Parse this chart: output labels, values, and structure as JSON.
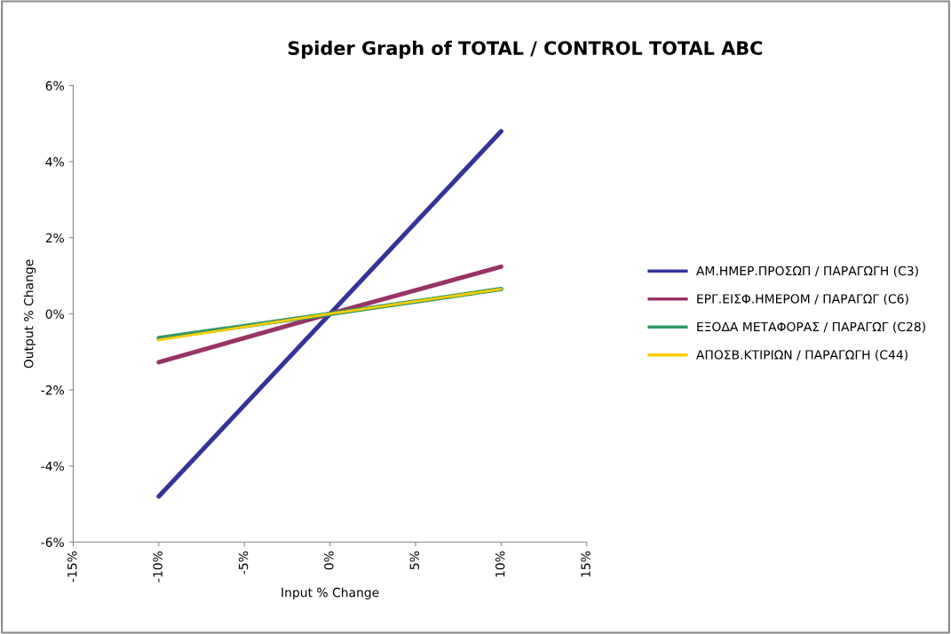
{
  "chart_data": {
    "type": "line",
    "title": "Spider Graph of TOTAL / CONTROL TOTAL ABC",
    "xlabel": "Input % Change",
    "ylabel": "Output % Change",
    "x": [
      -10,
      0,
      10
    ],
    "series": [
      {
        "name": "ΑΜ.ΗΜΕΡ.ΠΡΟΣΩΠ / ΠΑΡΑΓΩΓΗ (C3)",
        "color": "#333399",
        "values": [
          -4.8,
          0,
          4.8
        ]
      },
      {
        "name": "ΕΡΓ.ΕΙΣΦ.ΗΜΕΡΟΜ / ΠΑΡΑΓΩΓ (C6)",
        "color": "#993366",
        "values": [
          -1.27,
          0,
          1.24
        ]
      },
      {
        "name": "ΕΞΟΔΑ ΜΕΤΑΦΟΡΑΣ / ΠΑΡΑΓΩΓ (C28)",
        "color": "#339966",
        "values": [
          -0.64,
          0,
          0.65
        ]
      },
      {
        "name": "ΑΠΟΣΒ.ΚΤΙΡΙΩΝ / ΠΑΡΑΓΩΓΗ (C44)",
        "color": "#ffcc00",
        "values": [
          -0.69,
          0,
          0.65
        ]
      }
    ],
    "xlim": [
      -15,
      15
    ],
    "xticks": [
      {
        "value": -15,
        "label": "-15%"
      },
      {
        "value": -10,
        "label": "-10%"
      },
      {
        "value": -5,
        "label": "-5%"
      },
      {
        "value": 0,
        "label": "0%"
      },
      {
        "value": 5,
        "label": "5%"
      },
      {
        "value": 10,
        "label": "10%"
      },
      {
        "value": 15,
        "label": "15%"
      }
    ],
    "ylim": [
      -6,
      6
    ],
    "yticks": [
      {
        "value": -6,
        "label": "-6%"
      },
      {
        "value": -4,
        "label": "-4%"
      },
      {
        "value": -2,
        "label": "-2%"
      },
      {
        "value": 0,
        "label": "0%"
      },
      {
        "value": 2,
        "label": "2%"
      },
      {
        "value": 4,
        "label": "4%"
      },
      {
        "value": 6,
        "label": "6%"
      }
    ],
    "grid": false,
    "legend": "right",
    "marker": "none",
    "line_style": "solid"
  }
}
